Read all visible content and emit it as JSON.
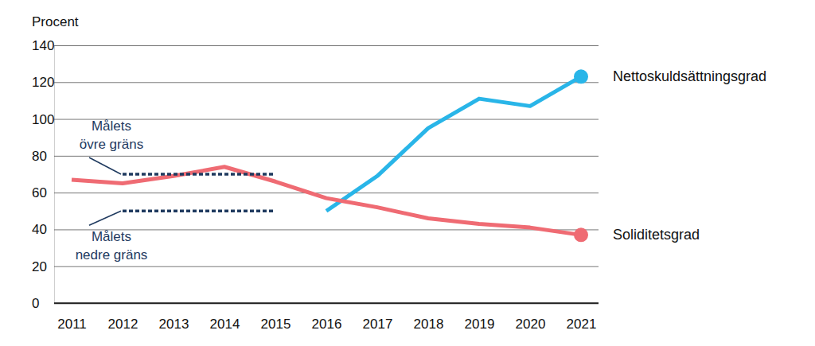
{
  "chart_data": {
    "type": "line",
    "y_label": "Procent",
    "categories": [
      "2011",
      "2012",
      "2013",
      "2014",
      "2015",
      "2016",
      "2017",
      "2018",
      "2019",
      "2020",
      "2021"
    ],
    "ylim": [
      0,
      140
    ],
    "yticks": [
      0,
      20,
      40,
      60,
      80,
      100,
      120,
      140
    ],
    "grid": true,
    "series": [
      {
        "name": "Nettoskuldsättningsgrad",
        "color": "#29b5e8",
        "marker": "end",
        "values": [
          null,
          null,
          null,
          null,
          null,
          50,
          69,
          95,
          111,
          107,
          123
        ]
      },
      {
        "name": "Soliditetsgrad",
        "color": "#ef6b73",
        "marker": "end",
        "values": [
          67,
          65,
          69,
          74,
          66,
          57,
          52,
          46,
          43,
          41,
          37
        ]
      },
      {
        "name": "Målets övre gräns",
        "color": "#1f3a5f",
        "line_style": "dashed",
        "values": [
          null,
          70,
          70,
          70,
          70,
          null,
          null,
          null,
          null,
          null,
          null
        ]
      },
      {
        "name": "Målets nedre gräns",
        "color": "#1f3a5f",
        "line_style": "dashed",
        "values": [
          null,
          50,
          50,
          50,
          50,
          null,
          null,
          null,
          null,
          null,
          null
        ]
      }
    ]
  }
}
